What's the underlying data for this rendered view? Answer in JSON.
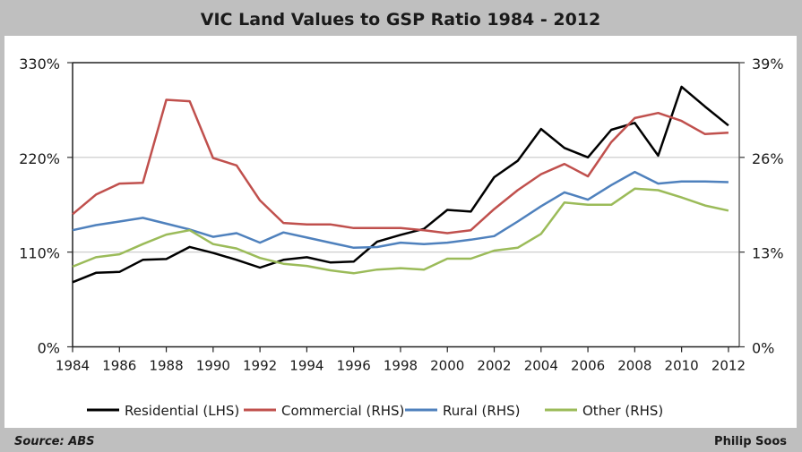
{
  "chart_data": {
    "type": "line",
    "title": "VIC Land Values to GSP Ratio 1984 - 2012",
    "x": [
      1984,
      1985,
      1986,
      1987,
      1988,
      1989,
      1990,
      1991,
      1992,
      1993,
      1994,
      1995,
      1996,
      1997,
      1998,
      1999,
      2000,
      2001,
      2002,
      2003,
      2004,
      2005,
      2006,
      2007,
      2008,
      2009,
      2010,
      2011,
      2012
    ],
    "x_tick_labels": [
      "1984",
      "1986",
      "1988",
      "1990",
      "1992",
      "1994",
      "1996",
      "1998",
      "2000",
      "2002",
      "2004",
      "2006",
      "2008",
      "2010",
      "2012"
    ],
    "y_left": {
      "range": [
        0,
        330
      ],
      "ticks": [
        "0%",
        "110%",
        "220%",
        "330%"
      ]
    },
    "y_right": {
      "range": [
        0,
        39
      ],
      "ticks": [
        "0%",
        "13%",
        "26%",
        "39%"
      ]
    },
    "grid": true,
    "legend_position": "bottom",
    "series": [
      {
        "name": "Residential (LHS)",
        "axis": "left",
        "color": "#000000",
        "values": [
          75,
          86,
          87,
          101,
          102,
          116,
          109,
          101,
          92,
          101,
          104,
          98,
          99,
          122,
          130,
          137,
          159,
          157,
          197,
          216,
          253,
          231,
          220,
          252,
          260,
          222,
          302,
          279,
          257
        ]
      },
      {
        "name": "Commercial (RHS)",
        "axis": "right",
        "color": "#c0504d",
        "values": [
          18.2,
          20.9,
          22.4,
          22.5,
          33.9,
          33.7,
          25.9,
          24.9,
          20.1,
          17.0,
          16.8,
          16.8,
          16.3,
          16.3,
          16.3,
          16.0,
          15.6,
          16.0,
          18.9,
          21.5,
          23.7,
          25.1,
          23.4,
          28.1,
          31.4,
          32.1,
          31.0,
          29.2,
          29.4
        ]
      },
      {
        "name": "Rural (RHS)",
        "axis": "right",
        "color": "#4f81bd",
        "values": [
          16.0,
          16.7,
          17.2,
          17.7,
          16.9,
          16.1,
          15.1,
          15.6,
          14.3,
          15.7,
          15.0,
          14.3,
          13.6,
          13.7,
          14.3,
          14.1,
          14.3,
          14.7,
          15.2,
          17.2,
          19.3,
          21.2,
          20.2,
          22.2,
          24.0,
          22.4,
          22.7,
          22.7,
          22.6
        ]
      },
      {
        "name": "Other (RHS)",
        "axis": "right",
        "color": "#9bbb59",
        "values": [
          11.0,
          12.3,
          12.7,
          14.1,
          15.4,
          16.0,
          14.1,
          13.5,
          12.2,
          11.4,
          11.1,
          10.5,
          10.1,
          10.6,
          10.8,
          10.6,
          12.1,
          12.1,
          13.2,
          13.6,
          15.5,
          19.8,
          19.5,
          19.5,
          21.7,
          21.5,
          20.5,
          19.4,
          18.7
        ]
      }
    ]
  },
  "footer": {
    "source": "Source: ABS",
    "author": "Philip Soos"
  }
}
